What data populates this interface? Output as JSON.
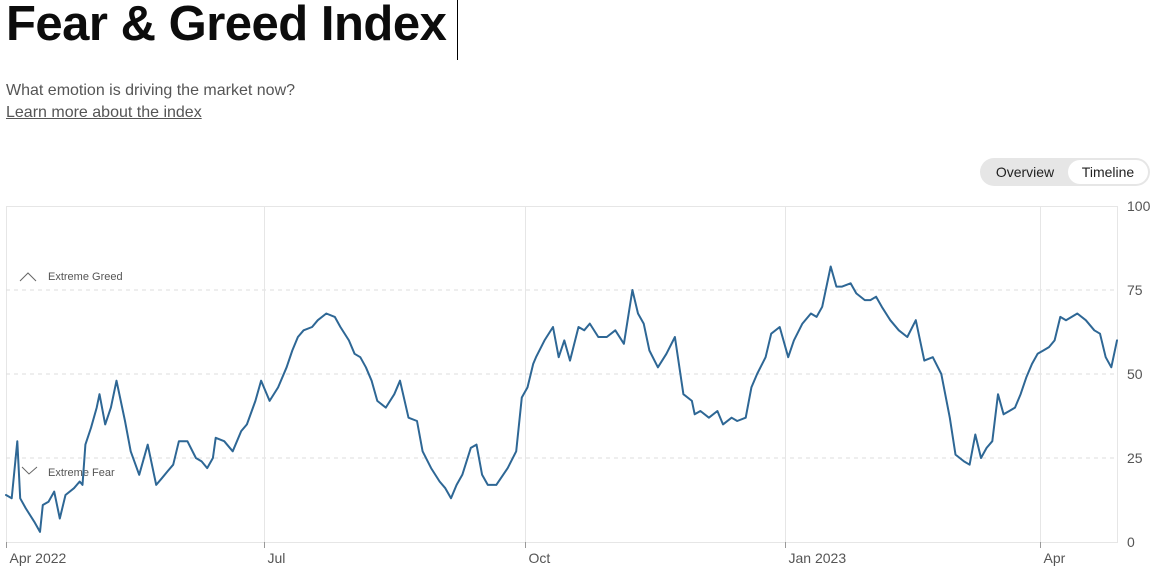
{
  "header": {
    "title": "Fear & Greed Index",
    "subtitle": "What emotion is driving the market now?",
    "learn_more": "Learn more about the index"
  },
  "view_toggle": {
    "options": [
      "Overview",
      "Timeline"
    ],
    "selected": "Timeline"
  },
  "zones": {
    "greed_label": "Extreme Greed",
    "fear_label": "Extreme Fear"
  },
  "colors": {
    "line": "#2e6795",
    "grid": "#dddddd",
    "toggle_bg": "#e6e6e6"
  },
  "icons": {
    "greed": "chevron-up-icon",
    "fear": "chevron-down-icon"
  },
  "chart_data": {
    "type": "line",
    "title": "",
    "xlabel": "",
    "ylabel": "",
    "ylim": [
      0,
      100
    ],
    "y_ticks": [
      0,
      25,
      50,
      75,
      100
    ],
    "x_ticks": [
      {
        "label": "Apr 2022",
        "date": "2022-04-01"
      },
      {
        "label": "Jul",
        "date": "2022-07-01"
      },
      {
        "label": "Oct",
        "date": "2022-10-01"
      },
      {
        "label": "Jan 2023",
        "date": "2023-01-01"
      },
      {
        "label": "Apr",
        "date": "2023-04-01"
      }
    ],
    "x_range": [
      "2022-04-01",
      "2023-04-28"
    ],
    "grid": true,
    "series": [
      {
        "x": [
          "2022-04-01",
          "2022-04-03",
          "2022-04-05",
          "2022-04-06",
          "2022-04-08",
          "2022-04-11",
          "2022-04-13",
          "2022-04-14",
          "2022-04-16",
          "2022-04-18",
          "2022-04-20",
          "2022-04-22",
          "2022-04-25",
          "2022-04-27",
          "2022-04-28",
          "2022-04-29",
          "2022-05-01",
          "2022-05-03",
          "2022-05-04",
          "2022-05-06",
          "2022-05-08",
          "2022-05-10",
          "2022-05-13",
          "2022-05-15",
          "2022-05-18",
          "2022-05-21",
          "2022-05-24",
          "2022-05-26",
          "2022-05-28",
          "2022-05-30",
          "2022-06-01",
          "2022-06-04",
          "2022-06-07",
          "2022-06-09",
          "2022-06-11",
          "2022-06-13",
          "2022-06-14",
          "2022-06-17",
          "2022-06-20",
          "2022-06-23",
          "2022-06-25",
          "2022-06-28",
          "2022-06-30",
          "2022-07-03",
          "2022-07-06",
          "2022-07-09",
          "2022-07-11",
          "2022-07-13",
          "2022-07-15",
          "2022-07-18",
          "2022-07-20",
          "2022-07-23",
          "2022-07-26",
          "2022-07-28",
          "2022-07-31",
          "2022-08-02",
          "2022-08-04",
          "2022-08-06",
          "2022-08-08",
          "2022-08-10",
          "2022-08-13",
          "2022-08-16",
          "2022-08-18",
          "2022-08-21",
          "2022-08-24",
          "2022-08-26",
          "2022-08-29",
          "2022-09-01",
          "2022-09-03",
          "2022-09-05",
          "2022-09-07",
          "2022-09-09",
          "2022-09-12",
          "2022-09-14",
          "2022-09-16",
          "2022-09-18",
          "2022-09-21",
          "2022-09-25",
          "2022-09-28",
          "2022-09-30",
          "2022-10-02",
          "2022-10-04",
          "2022-10-05",
          "2022-10-08",
          "2022-10-11",
          "2022-10-13",
          "2022-10-15",
          "2022-10-17",
          "2022-10-20",
          "2022-10-22",
          "2022-10-24",
          "2022-10-27",
          "2022-10-30",
          "2022-11-02",
          "2022-11-05",
          "2022-11-08",
          "2022-11-10",
          "2022-11-12",
          "2022-11-14",
          "2022-11-17",
          "2022-11-20",
          "2022-11-23",
          "2022-11-26",
          "2022-11-29",
          "2022-11-30",
          "2022-12-02",
          "2022-12-05",
          "2022-12-08",
          "2022-12-10",
          "2022-12-13",
          "2022-12-15",
          "2022-12-18",
          "2022-12-20",
          "2022-12-22",
          "2022-12-25",
          "2022-12-27",
          "2022-12-30",
          "2023-01-02",
          "2023-01-04",
          "2023-01-07",
          "2023-01-10",
          "2023-01-12",
          "2023-01-14",
          "2023-01-17",
          "2023-01-19",
          "2023-01-21",
          "2023-01-24",
          "2023-01-26",
          "2023-01-29",
          "2023-01-31",
          "2023-02-02",
          "2023-02-04",
          "2023-02-07",
          "2023-02-10",
          "2023-02-13",
          "2023-02-16",
          "2023-02-19",
          "2023-02-22",
          "2023-02-25",
          "2023-02-28",
          "2023-03-02",
          "2023-03-05",
          "2023-03-07",
          "2023-03-09",
          "2023-03-11",
          "2023-03-13",
          "2023-03-15",
          "2023-03-17",
          "2023-03-19",
          "2023-03-21",
          "2023-03-23",
          "2023-03-25",
          "2023-03-27",
          "2023-03-29",
          "2023-03-31",
          "2023-04-02",
          "2023-04-04",
          "2023-04-06",
          "2023-04-08",
          "2023-04-10",
          "2023-04-12",
          "2023-04-14",
          "2023-04-17",
          "2023-04-20",
          "2023-04-22",
          "2023-04-24",
          "2023-04-26",
          "2023-04-28"
        ],
        "y": [
          14,
          13,
          30,
          13,
          10,
          6,
          3,
          11,
          12,
          15,
          7,
          14,
          16,
          18,
          17,
          29,
          34,
          40,
          44,
          35,
          40,
          48,
          36,
          27,
          20,
          29,
          17,
          19,
          21,
          23,
          30,
          30,
          25,
          24,
          22,
          25,
          31,
          30,
          27,
          33,
          35,
          42,
          48,
          42,
          46,
          52,
          57,
          61,
          63,
          64,
          66,
          68,
          67,
          64,
          60,
          56,
          55,
          52,
          48,
          42,
          40,
          44,
          48,
          37,
          36,
          27,
          22,
          18,
          16,
          13,
          17,
          20,
          28,
          29,
          20,
          17,
          17,
          22,
          27,
          43,
          46,
          53,
          55,
          60,
          64,
          55,
          60,
          54,
          64,
          63,
          65,
          61,
          61,
          63,
          59,
          75,
          68,
          65,
          57,
          52,
          56,
          61,
          44,
          42,
          38,
          39,
          37,
          39,
          35,
          37,
          36,
          37,
          46,
          50,
          55,
          62,
          64,
          55,
          60,
          65,
          68,
          67,
          70,
          82,
          76,
          76,
          77,
          74,
          72,
          72,
          73,
          70,
          66,
          63,
          61,
          66,
          54,
          55,
          50,
          37,
          26,
          24,
          23,
          32,
          25,
          28,
          30,
          44,
          38,
          39,
          40,
          44,
          49,
          53,
          56,
          57,
          58,
          60,
          67,
          66,
          67,
          68,
          66,
          63,
          62,
          55,
          52,
          60
        ]
      }
    ]
  }
}
